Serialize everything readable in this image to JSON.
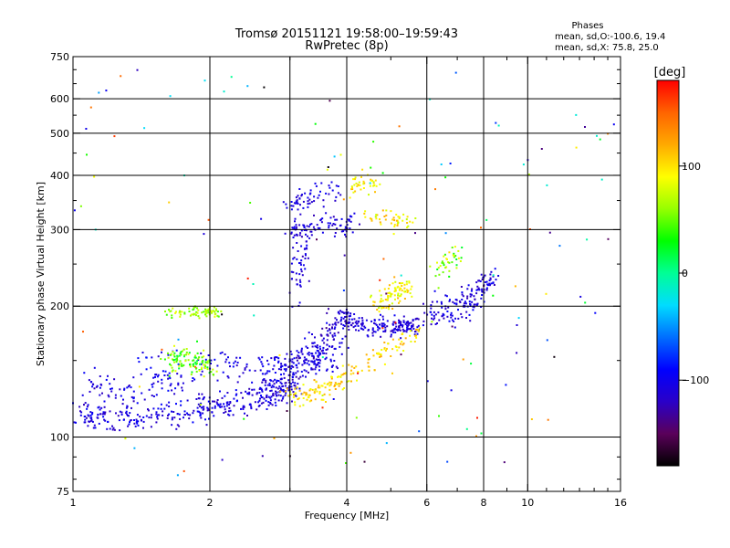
{
  "chart_data": {
    "type": "scatter",
    "title": "Tromsø 20151121 19:58:00–19:59:43",
    "subtitle": "RwPretec (8p)",
    "xlabel": "Frequency [MHz]",
    "ylabel": "Stationary phase Virtual Height [km]",
    "x_scale": "log",
    "y_scale": "log",
    "xlim": [
      1,
      16
    ],
    "ylim": [
      75,
      750
    ],
    "grid": true,
    "x_ticks": [
      1,
      2,
      4,
      6,
      8,
      10,
      16
    ],
    "x_minor_ticks": [
      3,
      5,
      7,
      9,
      11,
      12,
      13,
      14,
      15
    ],
    "y_ticks": [
      75,
      100,
      200,
      300,
      400,
      500,
      600,
      750
    ],
    "y_minor_ticks": [
      80,
      90,
      150,
      250,
      350,
      450,
      550,
      650,
      700
    ],
    "x_gridlines": [
      2,
      3,
      4,
      6,
      8,
      10
    ],
    "y_gridlines": [
      100,
      200,
      300,
      400,
      500,
      600
    ],
    "phase_stats": {
      "heading": "Phases",
      "line1": "mean, sd,O:-100.6, 19.4",
      "line2": "mean, sd,X:  75.8, 25.0"
    },
    "colorbar": {
      "label": "[deg]",
      "range": [
        -180,
        180
      ],
      "ticks": [
        {
          "value": 100,
          "label": "100"
        },
        {
          "value": 0,
          "label": "0"
        },
        {
          "value": -100,
          "label": "−100"
        }
      ],
      "colors": [
        "#000000",
        "#5a005a",
        "#2a00c8",
        "#0000ff",
        "#006eff",
        "#00dcff",
        "#00ff96",
        "#00ff00",
        "#96ff00",
        "#ffff00",
        "#ffaa00",
        "#ff6400",
        "#ff0000"
      ]
    },
    "series": [
      {
        "id": "o-trace-low",
        "trace": [
          [
            1.03,
            112
          ],
          [
            1.1,
            111
          ],
          [
            1.2,
            110
          ],
          [
            1.35,
            111
          ],
          [
            1.5,
            112
          ],
          [
            1.7,
            114
          ],
          [
            1.9,
            116
          ],
          [
            2.1,
            118
          ],
          [
            2.3,
            120
          ],
          [
            2.5,
            122
          ],
          [
            2.7,
            124
          ],
          [
            2.9,
            127
          ],
          [
            3.1,
            130
          ]
        ],
        "spread": 0.035,
        "count": 340,
        "phase": [
          -125,
          -90
        ]
      },
      {
        "id": "o-trace-rising",
        "trace": [
          [
            2.6,
            125
          ],
          [
            2.8,
            130
          ],
          [
            3.0,
            138
          ],
          [
            3.2,
            148
          ],
          [
            3.4,
            158
          ],
          [
            3.6,
            168
          ],
          [
            3.8,
            178
          ],
          [
            4.0,
            182
          ]
        ],
        "spread": 0.05,
        "count": 200,
        "phase": [
          -130,
          -95
        ]
      },
      {
        "id": "o-f1-steps",
        "trace": [
          [
            1.9,
            148
          ],
          [
            2.3,
            146
          ],
          [
            2.7,
            145
          ],
          [
            3.1,
            150
          ],
          [
            3.5,
            150
          ],
          [
            3.8,
            152
          ]
        ],
        "spread": 0.04,
        "count": 150,
        "phase": [
          -120,
          -90
        ]
      },
      {
        "id": "o-f2-layer",
        "trace": [
          [
            3.9,
            190
          ],
          [
            4.3,
            180
          ],
          [
            4.8,
            178
          ],
          [
            5.3,
            180
          ],
          [
            5.8,
            182
          ]
        ],
        "spread": 0.025,
        "count": 180,
        "phase": [
          -125,
          -95
        ]
      },
      {
        "id": "o-f2-upper",
        "trace": [
          [
            6.0,
            192
          ],
          [
            6.6,
            195
          ],
          [
            7.2,
            200
          ],
          [
            7.6,
            210
          ],
          [
            8.0,
            225
          ],
          [
            8.4,
            230
          ]
        ],
        "spread": 0.04,
        "count": 150,
        "phase": [
          -125,
          -90
        ]
      },
      {
        "id": "o-multihop-300",
        "trace": [
          [
            3.0,
            300
          ],
          [
            3.3,
            305
          ],
          [
            3.6,
            310
          ],
          [
            3.9,
            305
          ],
          [
            4.2,
            310
          ]
        ],
        "spread": 0.03,
        "count": 80,
        "phase": [
          -125,
          -95
        ]
      },
      {
        "id": "o-multihop-350",
        "trace": [
          [
            3.0,
            340
          ],
          [
            3.2,
            350
          ],
          [
            3.5,
            360
          ],
          [
            3.8,
            370
          ]
        ],
        "spread": 0.03,
        "count": 60,
        "phase": [
          -120,
          -95
        ]
      },
      {
        "id": "o-vertical-3mhz",
        "trace": [
          [
            3.1,
            210
          ],
          [
            3.15,
            240
          ],
          [
            3.2,
            270
          ],
          [
            3.2,
            300
          ]
        ],
        "spread": 0.04,
        "count": 60,
        "phase": [
          -125,
          -95
        ]
      },
      {
        "id": "o-lowfreq-135",
        "trace": [
          [
            1.05,
            135
          ],
          [
            1.15,
            132
          ],
          [
            1.25,
            128
          ],
          [
            1.35,
            125
          ]
        ],
        "spread": 0.05,
        "count": 50,
        "phase": [
          -125,
          -90
        ]
      },
      {
        "id": "o-blob-1mhz",
        "trace": [
          [
            1.45,
            135
          ],
          [
            1.6,
            138
          ],
          [
            1.75,
            140
          ]
        ],
        "spread": 0.08,
        "count": 60,
        "phase": [
          -120,
          -85
        ]
      },
      {
        "id": "x-green-195",
        "trace": [
          [
            1.6,
            192
          ],
          [
            1.8,
            194
          ],
          [
            2.0,
            194
          ],
          [
            2.1,
            193
          ]
        ],
        "spread": 0.015,
        "count": 70,
        "phase": [
          40,
          85
        ]
      },
      {
        "id": "x-green-150",
        "trace": [
          [
            1.6,
            150
          ],
          [
            1.75,
            152
          ],
          [
            1.9,
            148
          ],
          [
            2.0,
            146
          ]
        ],
        "spread": 0.035,
        "count": 110,
        "phase": [
          10,
          85
        ]
      },
      {
        "id": "x-yellow-lower",
        "trace": [
          [
            3.0,
            125
          ],
          [
            3.3,
            126
          ],
          [
            3.6,
            130
          ],
          [
            3.9,
            135
          ],
          [
            4.3,
            143
          ],
          [
            4.7,
            155
          ],
          [
            5.2,
            165
          ],
          [
            5.8,
            175
          ]
        ],
        "spread": 0.03,
        "count": 160,
        "phase": [
          80,
          125
        ]
      },
      {
        "id": "x-yellow-215",
        "trace": [
          [
            4.6,
            200
          ],
          [
            4.9,
            208
          ],
          [
            5.2,
            215
          ],
          [
            5.5,
            220
          ]
        ],
        "spread": 0.03,
        "count": 90,
        "phase": [
          70,
          120
        ]
      },
      {
        "id": "x-yellow-380",
        "trace": [
          [
            4.1,
            375
          ],
          [
            4.4,
            385
          ],
          [
            4.7,
            380
          ]
        ],
        "spread": 0.025,
        "count": 40,
        "phase": [
          75,
          120
        ]
      },
      {
        "id": "x-yellow-320",
        "trace": [
          [
            4.4,
            320
          ],
          [
            5.0,
            318
          ],
          [
            5.6,
            315
          ]
        ],
        "spread": 0.025,
        "count": 45,
        "phase": [
          70,
          120
        ]
      },
      {
        "id": "x-upper-250",
        "trace": [
          [
            6.3,
            240
          ],
          [
            6.7,
            255
          ],
          [
            7.0,
            260
          ]
        ],
        "spread": 0.04,
        "count": 40,
        "phase": [
          20,
          110
        ]
      },
      {
        "id": "background-noise",
        "trace": [
          [
            1.0,
            80
          ],
          [
            16.0,
            700
          ]
        ],
        "spread": 0.0,
        "count": 150,
        "phase": [
          -180,
          180
        ],
        "uniform": true
      }
    ]
  }
}
